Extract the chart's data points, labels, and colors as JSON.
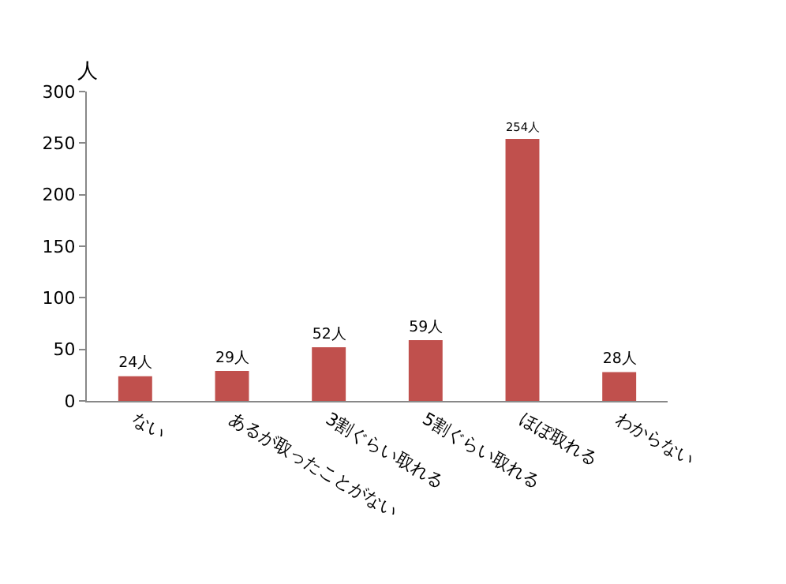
{
  "chart_data": {
    "type": "bar",
    "ylabel": "人",
    "categories": [
      "ない",
      "あるが取ったことがない",
      "3割ぐらい取れる",
      "5割ぐらい取れる",
      "ほぼ取れる",
      "わからない"
    ],
    "values": [
      24,
      29,
      52,
      59,
      254,
      28
    ],
    "value_labels": [
      "24人",
      "29人",
      "52人",
      "59人",
      "254人",
      "28人"
    ],
    "color": "#c0504d",
    "ylim": [
      0,
      300
    ],
    "yticks": [
      0,
      50,
      100,
      150,
      200,
      250,
      300
    ]
  }
}
